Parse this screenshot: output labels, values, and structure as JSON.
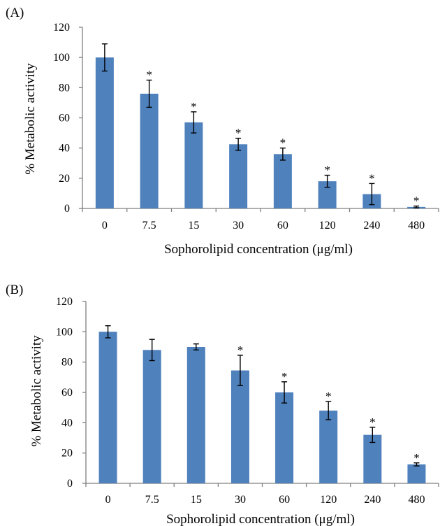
{
  "chart_data": [
    {
      "type": "bar",
      "panel_label": "(A)",
      "categories": [
        "0",
        "7.5",
        "15",
        "30",
        "60",
        "120",
        "240",
        "480"
      ],
      "values": [
        100,
        76,
        57,
        42.5,
        36,
        18,
        9.5,
        1
      ],
      "errors": [
        9,
        9,
        7,
        4,
        4,
        4,
        7,
        0.6
      ],
      "significance": [
        "",
        "*",
        "*",
        "*",
        "*",
        "*",
        "*",
        "*"
      ],
      "xlabel": "Sophorolipid concentration (μg/ml)",
      "ylabel": "% Metabolic activity",
      "ylim": [
        0,
        120
      ],
      "yticks": [
        0,
        20,
        40,
        60,
        80,
        100,
        120
      ],
      "bar_color": "#4f81bd",
      "grid": false
    },
    {
      "type": "bar",
      "panel_label": "(B)",
      "categories": [
        "0",
        "7.5",
        "15",
        "30",
        "60",
        "120",
        "240",
        "480"
      ],
      "values": [
        100,
        88,
        90,
        74.5,
        60,
        48,
        32,
        12.5
      ],
      "errors": [
        4,
        7,
        2,
        10,
        7,
        6,
        5,
        1
      ],
      "significance": [
        "",
        "",
        "",
        "*",
        "*",
        "*",
        "*",
        "*"
      ],
      "xlabel": "Sophorolipid concentration (μg/ml)",
      "ylabel": "% Metabolic activity",
      "ylim": [
        0,
        120
      ],
      "yticks": [
        0,
        20,
        40,
        60,
        80,
        100,
        120
      ],
      "bar_color": "#4f81bd",
      "grid": false
    }
  ]
}
